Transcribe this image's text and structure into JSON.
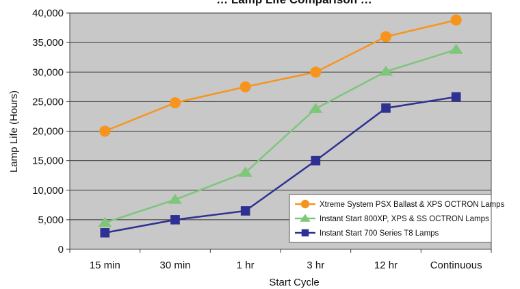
{
  "chart_data": {
    "type": "line",
    "title": "… Lamp Life Comparison …",
    "xlabel": "Start Cycle",
    "ylabel": "Lamp Life (Hours)",
    "ylim": [
      0,
      40000
    ],
    "yticks": [
      0,
      5000,
      10000,
      15000,
      20000,
      25000,
      30000,
      35000,
      40000
    ],
    "ytick_labels": [
      "0",
      "5,000",
      "10,000",
      "15,000",
      "20,000",
      "25,000",
      "30,000",
      "35,000",
      "40,000"
    ],
    "categories": [
      "15 min",
      "30 min",
      "1 hr",
      "3 hr",
      "12 hr",
      "Continuous"
    ],
    "grid": true,
    "legend_position": "bottom-right",
    "background_color": "#c8c8c8",
    "series": [
      {
        "name": "Xtreme System PSX Ballast & XPS OCTRON Lamps",
        "marker": "circle",
        "color": "#f7941d",
        "values": [
          20000,
          24800,
          27500,
          30000,
          36000,
          38800
        ]
      },
      {
        "name": "Instant Start 800XP, XPS & SS OCTRON Lamps",
        "marker": "triangle",
        "color": "#7dc67a",
        "values": [
          4500,
          8400,
          13000,
          23800,
          30100,
          33800
        ]
      },
      {
        "name": "Instant Start 700 Series T8 Lamps",
        "marker": "square",
        "color": "#2e3192",
        "values": [
          2800,
          5000,
          6500,
          15000,
          23900,
          25800
        ]
      }
    ]
  }
}
